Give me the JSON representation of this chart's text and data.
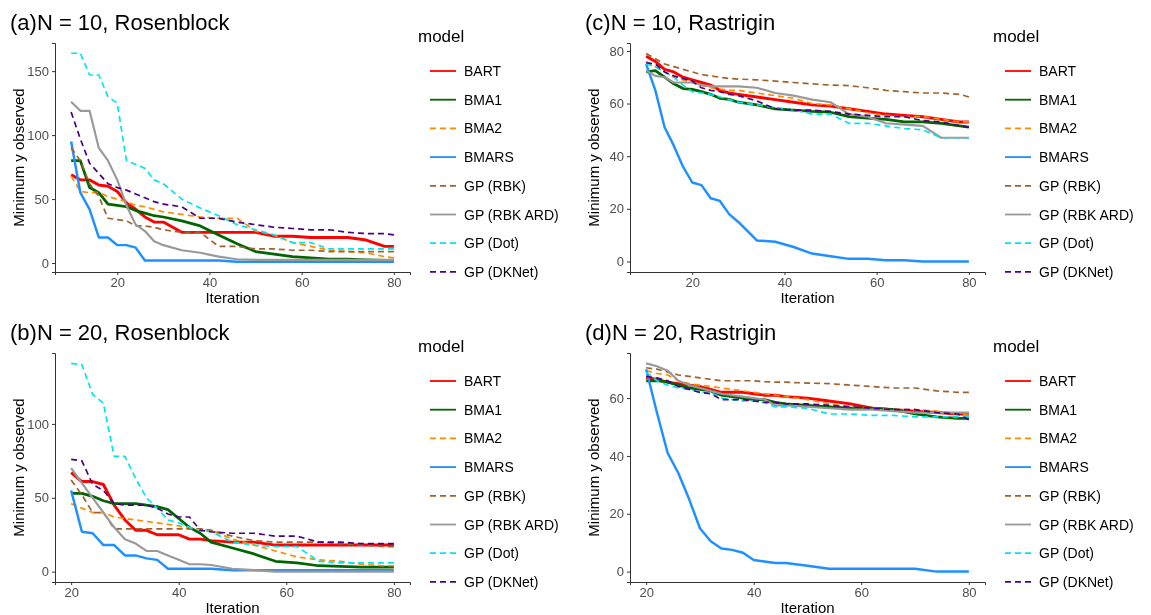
{
  "chart_data": [
    {
      "type": "line",
      "title": "(a)N = 10, Rosenblock",
      "xlabel": "Iteration",
      "ylabel": "Minimum y observed",
      "legend_title": "model",
      "legend": "right",
      "grid": false,
      "x": [
        10,
        12,
        14,
        16,
        18,
        20,
        22,
        24,
        26,
        28,
        30,
        34,
        38,
        42,
        46,
        50,
        54,
        58,
        62,
        66,
        70,
        74,
        78,
        80
      ],
      "xlim": [
        6.5,
        83.5
      ],
      "xticks": [
        20,
        40,
        60,
        80
      ],
      "ylim": [
        -7,
        172
      ],
      "yticks": [
        0,
        50,
        100,
        150
      ],
      "series": [
        {
          "name": "BART",
          "color": "#ff0000",
          "line_style": "solid",
          "values": [
            69,
            65,
            65,
            61,
            60,
            56,
            47,
            42,
            36,
            32,
            32,
            24,
            24,
            24,
            24,
            24,
            21,
            21,
            20,
            20,
            20,
            18,
            13,
            13
          ]
        },
        {
          "name": "BMA1",
          "color": "#006400",
          "line_style": "solid",
          "values": [
            80,
            80,
            59,
            55,
            46,
            45,
            44,
            41,
            39,
            37,
            36,
            33,
            29,
            22,
            15,
            9,
            7,
            5,
            4,
            3,
            3,
            2.5,
            2,
            2
          ]
        },
        {
          "name": "BMA2",
          "color": "#ff8c00",
          "line_style": "dashed",
          "values": [
            68,
            56,
            55,
            55,
            52,
            50,
            48,
            45,
            44,
            42,
            40,
            38,
            36,
            35,
            35,
            25,
            22,
            16,
            13,
            10,
            9,
            8,
            5,
            4
          ]
        },
        {
          "name": "BMARS",
          "color": "#1e90ff",
          "line_style": "solid",
          "values": [
            95,
            55,
            42,
            20,
            20,
            14,
            14,
            12,
            2,
            2,
            2,
            2,
            2,
            2,
            1,
            1,
            1,
            1,
            1,
            1,
            1,
            1,
            1,
            1
          ]
        },
        {
          "name": "GP (RBK)",
          "color": "#a0622d",
          "line_style": "dashed",
          "values": [
            90,
            80,
            62,
            52,
            35,
            34,
            33,
            29,
            29,
            28,
            26,
            24,
            24,
            13,
            13,
            11,
            11,
            10,
            10,
            9,
            9,
            9,
            9,
            9
          ]
        },
        {
          "name": "GP (RBK ARD)",
          "color": "#999999",
          "line_style": "solid",
          "values": [
            126,
            119,
            119,
            90,
            80,
            65,
            45,
            30,
            25,
            17,
            14,
            10,
            8,
            5,
            3,
            2.5,
            2.5,
            2.5,
            2.5,
            2.5,
            2.5,
            2.5,
            2.5,
            2.5
          ]
        },
        {
          "name": "GP (Dot)",
          "color": "#00e5ee",
          "line_style": "dashed",
          "values": [
            164,
            164,
            147,
            147,
            130,
            125,
            80,
            77,
            74,
            65,
            62,
            50,
            43,
            37,
            30,
            26,
            22,
            16,
            16,
            11,
            11,
            11,
            11,
            11
          ]
        },
        {
          "name": "GP (DKNet)",
          "color": "#4b0082",
          "line_style": "dashed",
          "values": [
            118,
            97,
            78,
            70,
            62,
            59,
            57,
            54,
            51,
            48,
            46,
            44,
            35,
            35,
            32,
            30,
            28,
            27,
            26,
            26,
            24,
            23,
            23,
            22
          ]
        }
      ]
    },
    {
      "type": "line",
      "title": "(c)N = 10, Rastrigin",
      "xlabel": "Iteration",
      "ylabel": "Minimum y observed",
      "legend_title": "model",
      "legend": "right",
      "grid": false,
      "x": [
        10,
        12,
        14,
        16,
        18,
        20,
        22,
        24,
        26,
        28,
        30,
        34,
        38,
        42,
        46,
        50,
        54,
        58,
        62,
        66,
        70,
        74,
        78,
        80
      ],
      "xlim": [
        6.5,
        83.5
      ],
      "xticks": [
        20,
        40,
        60,
        80
      ],
      "ylim": [
        -4,
        83
      ],
      "yticks": [
        0,
        20,
        40,
        60,
        80
      ],
      "series": [
        {
          "name": "BART",
          "color": "#ff0000",
          "line_style": "solid",
          "values": [
            78,
            76,
            73,
            72,
            70,
            69,
            68,
            67,
            65,
            64,
            63.5,
            62.5,
            61.5,
            60.5,
            59.5,
            59,
            58,
            57,
            56,
            55.5,
            55,
            54,
            53,
            53
          ]
        },
        {
          "name": "BMA1",
          "color": "#006400",
          "line_style": "solid",
          "values": [
            72,
            72.5,
            70,
            67.5,
            65.7,
            65.4,
            64.5,
            63.5,
            62,
            61.6,
            60.5,
            59.5,
            58,
            57.5,
            57,
            56.7,
            55,
            54.5,
            54,
            53,
            53,
            52.5,
            51.5,
            51
          ]
        },
        {
          "name": "BMA2",
          "color": "#ff8c00",
          "line_style": "dashed",
          "values": [
            76,
            74,
            72,
            70,
            69,
            68,
            67,
            66,
            65.5,
            65,
            65,
            64,
            63,
            62,
            60,
            59.5,
            58,
            56.5,
            55.5,
            55,
            55,
            54,
            53,
            53
          ]
        },
        {
          "name": "BMARS",
          "color": "#1e90ff",
          "line_style": "solid",
          "values": [
            75,
            65,
            51,
            44,
            36,
            30,
            29,
            24,
            23,
            18,
            15,
            8,
            7.5,
            5.5,
            3,
            2,
            1,
            1,
            0.5,
            0.5,
            0,
            0,
            0,
            0
          ]
        },
        {
          "name": "GP (RBK)",
          "color": "#a0622d",
          "line_style": "dashed",
          "values": [
            79,
            77,
            75,
            74,
            73,
            72,
            71,
            70.5,
            70,
            69.5,
            69.3,
            69,
            68.5,
            68,
            67.5,
            67,
            66.8,
            66,
            65,
            64.5,
            64,
            64,
            63.5,
            62.5
          ]
        },
        {
          "name": "GP (RBK ARD)",
          "color": "#999999",
          "line_style": "solid",
          "values": [
            72.5,
            70.5,
            70,
            68,
            68,
            68,
            67,
            66.5,
            66.5,
            66.5,
            66.5,
            66,
            64,
            63,
            61.5,
            60.5,
            56,
            55,
            52.5,
            52,
            51.5,
            47,
            47,
            47
          ]
        },
        {
          "name": "GP (Dot)",
          "color": "#00e5ee",
          "line_style": "dashed",
          "values": [
            75,
            74,
            72,
            70,
            67,
            64.5,
            64,
            63.5,
            62.5,
            61.5,
            60.5,
            59.5,
            58.5,
            57.5,
            56,
            56,
            52.5,
            52.5,
            51.5,
            50.5,
            50,
            47,
            47,
            47
          ]
        },
        {
          "name": "GP (DKNet)",
          "color": "#4b0082",
          "line_style": "dashed",
          "values": [
            75.5,
            75,
            72,
            70.5,
            69.5,
            68.5,
            66,
            65,
            64.5,
            63.5,
            63,
            61,
            58,
            57.5,
            57.5,
            57,
            56,
            55.5,
            55,
            55,
            53.5,
            53,
            51.5,
            51
          ]
        }
      ]
    },
    {
      "type": "line",
      "title": "(b)N = 20, Rosenblock",
      "xlabel": "Iteration",
      "ylabel": "Minimum y observed",
      "legend_title": "model",
      "legend": "right",
      "grid": false,
      "x": [
        20,
        22,
        24,
        26,
        28,
        30,
        32,
        34,
        36,
        38,
        40,
        42,
        44,
        46,
        50,
        54,
        58,
        62,
        66,
        70,
        74,
        78,
        80
      ],
      "xlim": [
        17,
        83
      ],
      "xticks": [
        20,
        40,
        60,
        80
      ],
      "ylim": [
        -7,
        148
      ],
      "yticks": [
        0,
        50,
        100
      ],
      "series": [
        {
          "name": "BART",
          "color": "#ff0000",
          "line_style": "solid",
          "values": [
            67,
            61,
            61,
            59,
            45,
            35,
            28,
            28,
            25,
            25,
            25,
            22,
            22,
            21,
            20,
            20,
            18,
            18,
            18,
            18,
            18,
            18,
            18
          ]
        },
        {
          "name": "BMA1",
          "color": "#006400",
          "line_style": "solid",
          "values": [
            53,
            53,
            51,
            48,
            46,
            46,
            46,
            45,
            44,
            42,
            36,
            30,
            26,
            20,
            16,
            12,
            7,
            6,
            4,
            3.5,
            3,
            3,
            3
          ]
        },
        {
          "name": "BMA2",
          "color": "#ff8c00",
          "line_style": "dashed",
          "values": [
            46,
            43,
            40,
            40,
            37,
            36,
            35,
            34,
            33,
            32,
            31,
            29,
            29,
            28,
            22,
            18,
            14,
            10,
            8,
            7,
            5,
            4,
            4
          ]
        },
        {
          "name": "BMARS",
          "color": "#1e90ff",
          "line_style": "solid",
          "values": [
            55,
            27,
            26,
            18,
            18,
            11,
            11,
            9,
            8,
            2,
            2,
            2,
            2,
            2,
            1,
            1,
            1,
            1,
            1,
            1,
            1,
            1,
            1
          ]
        },
        {
          "name": "GP (RBK)",
          "color": "#a0622d",
          "line_style": "dashed",
          "values": [
            62,
            52,
            40,
            40,
            29,
            29,
            29,
            29,
            29,
            29,
            29,
            29,
            29,
            28,
            24,
            21,
            20,
            20,
            20,
            19,
            18,
            17,
            17
          ]
        },
        {
          "name": "GP (RBK ARD)",
          "color": "#999999",
          "line_style": "solid",
          "values": [
            70,
            60,
            50,
            40,
            30,
            22,
            19,
            14,
            14,
            11,
            8,
            5,
            5,
            4.5,
            2,
            1,
            0,
            0,
            0,
            0,
            0,
            0,
            0
          ]
        },
        {
          "name": "GP (Dot)",
          "color": "#00e5ee",
          "line_style": "dashed",
          "values": [
            141,
            140,
            120,
            114,
            78,
            78,
            63,
            50,
            43,
            35,
            33,
            30,
            28,
            27,
            20,
            18,
            17,
            17,
            7,
            6,
            6,
            6,
            6
          ]
        },
        {
          "name": "GP (DKNet)",
          "color": "#4b0082",
          "line_style": "dashed",
          "values": [
            76,
            75,
            59,
            55,
            46,
            45,
            45,
            45,
            43,
            39,
            37,
            37,
            28,
            27,
            26,
            26,
            24,
            24,
            20,
            20,
            19,
            19,
            19
          ]
        }
      ]
    },
    {
      "type": "line",
      "title": "(d)N = 20, Rastrigin",
      "xlabel": "Iteration",
      "ylabel": "Minimum y observed",
      "legend_title": "model",
      "legend": "right",
      "grid": false,
      "x": [
        20,
        22,
        24,
        26,
        28,
        30,
        32,
        34,
        36,
        38,
        40,
        42,
        44,
        46,
        50,
        54,
        58,
        62,
        66,
        70,
        74,
        78,
        80
      ],
      "xlim": [
        17,
        83
      ],
      "xticks": [
        20,
        40,
        60,
        80
      ],
      "ylim": [
        -3.6,
        75.6
      ],
      "yticks": [
        0,
        20,
        40,
        60
      ],
      "series": [
        {
          "name": "BART",
          "color": "#ff0000",
          "line_style": "solid",
          "values": [
            67,
            66.5,
            65.5,
            65,
            64.5,
            64,
            63,
            62,
            62,
            62,
            61.5,
            61,
            61,
            60.5,
            60,
            59,
            58,
            56.5,
            56,
            55.5,
            55,
            54.5,
            54.5
          ]
        },
        {
          "name": "BMA1",
          "color": "#006400",
          "line_style": "solid",
          "values": [
            66,
            66,
            65.5,
            64.5,
            63.5,
            63,
            62.5,
            61,
            60.5,
            60,
            59.5,
            59.5,
            58.5,
            58,
            57.5,
            57,
            56.5,
            56.5,
            56,
            54.5,
            53.5,
            53,
            53
          ]
        },
        {
          "name": "BMA2",
          "color": "#ff8c00",
          "line_style": "dashed",
          "values": [
            69.5,
            68.5,
            68,
            66,
            65,
            64.5,
            64,
            63.5,
            63,
            62.5,
            62,
            61.5,
            61,
            60.5,
            59.5,
            58,
            57,
            56.5,
            56,
            56,
            55.5,
            54.5,
            54
          ]
        },
        {
          "name": "BMARS",
          "color": "#1e90ff",
          "line_style": "solid",
          "values": [
            70,
            55,
            41,
            34,
            25,
            15,
            10.5,
            8,
            7.5,
            6.5,
            4,
            3.5,
            3,
            3,
            2,
            1,
            1,
            1,
            1,
            1,
            0,
            0,
            0
          ]
        },
        {
          "name": "GP (RBK)",
          "color": "#a0622d",
          "line_style": "dashed",
          "values": [
            70.5,
            70,
            69,
            68,
            67.5,
            67,
            66.5,
            66,
            66,
            66,
            66,
            65.7,
            65.5,
            65.5,
            65.2,
            65,
            64.5,
            64,
            63.5,
            63.5,
            62.5,
            62,
            62
          ]
        },
        {
          "name": "GP (RBK ARD)",
          "color": "#999999",
          "line_style": "solid",
          "values": [
            72,
            71,
            69.5,
            66,
            64.5,
            63.5,
            62.5,
            61.5,
            61,
            60.5,
            60,
            59.5,
            57.5,
            57.5,
            57,
            56.5,
            56,
            56,
            55.5,
            55,
            55,
            55,
            55
          ]
        },
        {
          "name": "GP (Dot)",
          "color": "#00e5ee",
          "line_style": "dashed",
          "values": [
            69,
            66,
            64.5,
            63.5,
            63,
            62,
            62,
            60,
            59.5,
            59,
            59,
            58.5,
            57,
            57,
            56.5,
            54.5,
            54.5,
            54,
            54,
            53.5,
            53.5,
            53.5,
            53.5
          ]
        },
        {
          "name": "GP (DKNet)",
          "color": "#4b0082",
          "line_style": "dashed",
          "values": [
            67.5,
            67,
            66,
            64,
            63,
            62,
            61.5,
            59.5,
            59.5,
            59.5,
            59,
            58.5,
            58.5,
            58,
            58,
            57.5,
            57,
            56.5,
            56,
            56,
            55,
            54.5,
            52.5
          ]
        }
      ]
    }
  ]
}
